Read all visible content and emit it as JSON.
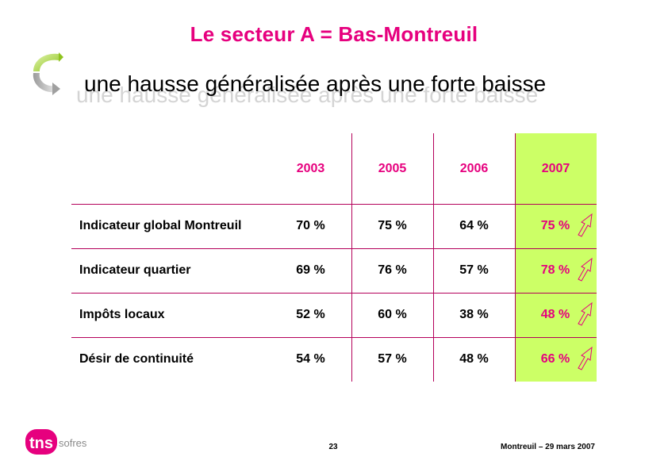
{
  "title": "Le secteur A = Bas-Montreuil",
  "subtitle": "une hausse généralisée après une forte baisse",
  "table": {
    "years": [
      "2003",
      "2005",
      "2006",
      "2007"
    ],
    "rows": [
      {
        "label": "Indicateur global Montreuil",
        "values": [
          "70 %",
          "75 %",
          "64 %",
          "75 %"
        ]
      },
      {
        "label": "Indicateur quartier",
        "values": [
          "69 %",
          "76 %",
          "57 %",
          "78 %"
        ]
      },
      {
        "label": "Impôts locaux",
        "values": [
          "52 %",
          "60 %",
          "38 %",
          "48 %"
        ]
      },
      {
        "label": "Désir de continuité",
        "values": [
          "54 %",
          "57 %",
          "48 %",
          "66 %"
        ]
      }
    ],
    "trend_icon": "up-arrow-icon"
  },
  "colors": {
    "accent": "#e6007e",
    "highlight": "#ccff66",
    "rule": "#b4005a"
  },
  "footer": {
    "logo_text_tns": "tns",
    "logo_text_sofres": "sofres",
    "page_number": "23",
    "date_label": "Montreuil – 29 mars 2007"
  }
}
